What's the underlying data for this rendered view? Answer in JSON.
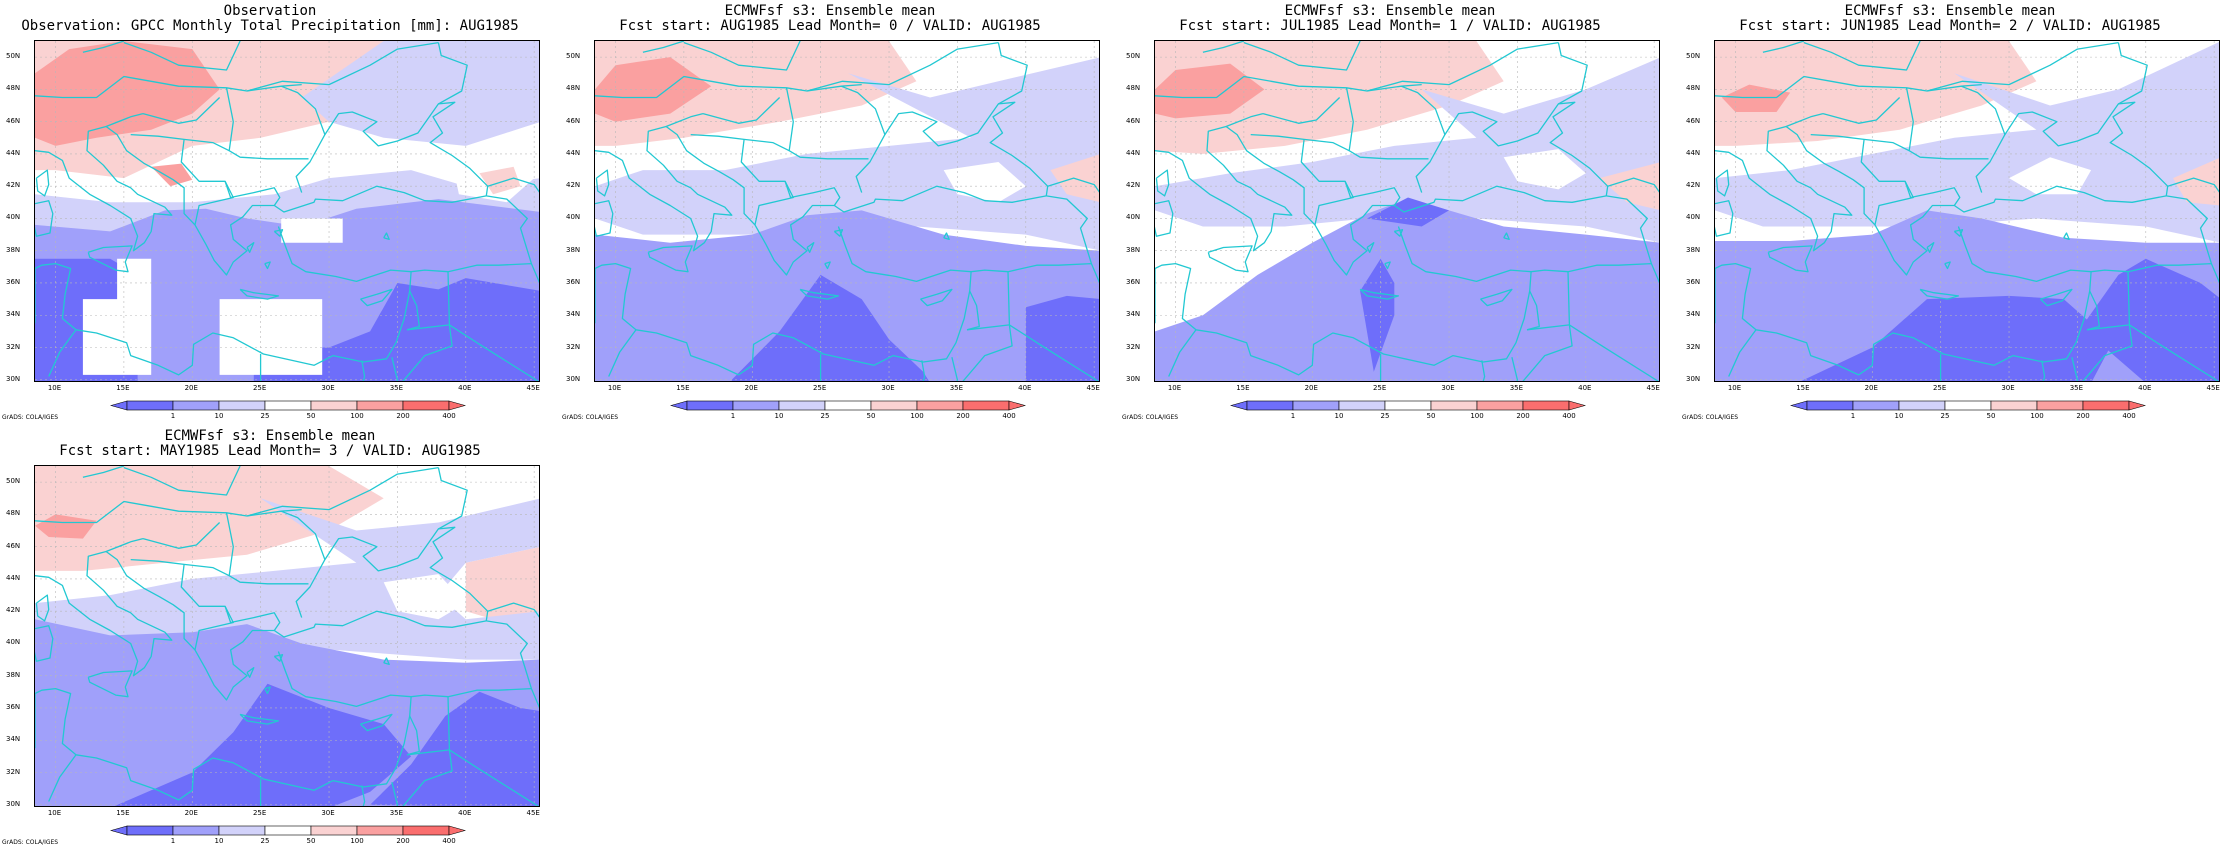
{
  "panels": [
    {
      "title_line1": "Observation",
      "title_line2": "Observation: GPCC Monthly Total Precipitation [mm]: AUG1985",
      "pattern": "obs"
    },
    {
      "title_line1": "ECMWFsf s3: Ensemble mean",
      "title_line2": "Fcst start: AUG1985  Lead Month= 0 / VALID: AUG1985",
      "pattern": "lead0"
    },
    {
      "title_line1": "ECMWFsf s3: Ensemble mean",
      "title_line2": "Fcst start: JUL1985  Lead Month= 1 / VALID: AUG1985",
      "pattern": "lead1"
    },
    {
      "title_line1": "ECMWFsf s3: Ensemble mean",
      "title_line2": "Fcst start: JUN1985  Lead Month= 2 / VALID: AUG1985",
      "pattern": "lead2"
    },
    {
      "title_line1": "ECMWFsf s3: Ensemble mean",
      "title_line2": "Fcst start: MAY1985  Lead Month= 3 / VALID: AUG1985",
      "pattern": "lead3"
    }
  ],
  "lat_labels": [
    "50N",
    "48N",
    "46N",
    "44N",
    "42N",
    "40N",
    "38N",
    "36N",
    "34N",
    "32N",
    "30N"
  ],
  "lon_labels": [
    "10E",
    "15E",
    "20E",
    "25E",
    "30E",
    "35E",
    "40E",
    "45E"
  ],
  "colorbar": {
    "labels": [
      "1",
      "10",
      "25",
      "50",
      "100",
      "200",
      "400"
    ],
    "colors": [
      "#6e6efa",
      "#a0a0fa",
      "#d2d2fa",
      "#ffffff",
      "#fad2d2",
      "#faa0a0",
      "#fa6e6e"
    ]
  },
  "credit": "GrADS: COLA/IGES",
  "colors": {
    "coastline": "#22c8d2",
    "grid": "#b8b8b8",
    "frame": "#000000"
  }
}
